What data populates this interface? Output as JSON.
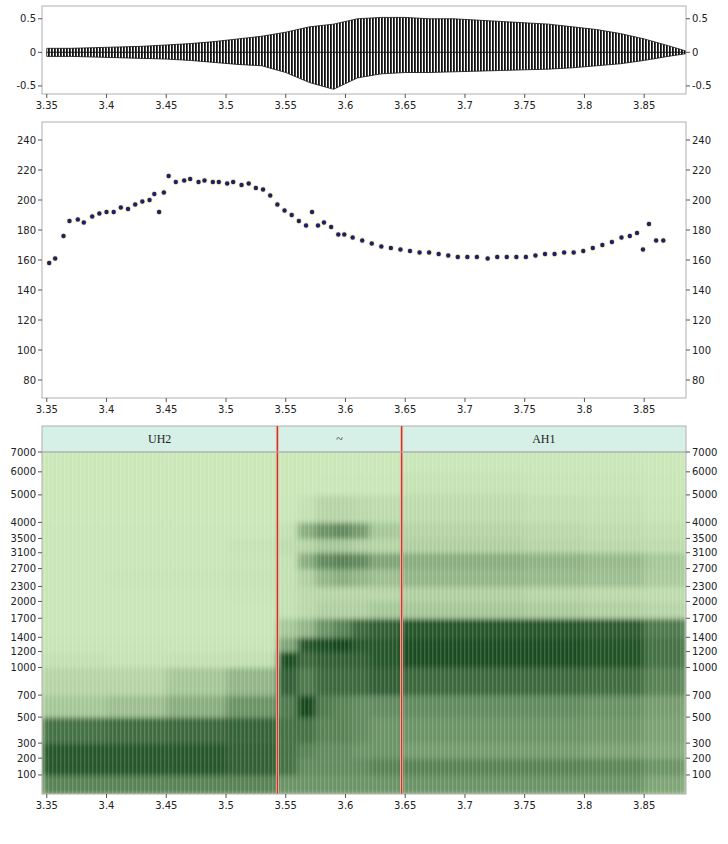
{
  "chart_data": [
    {
      "type": "waveform",
      "x": [
        3.35,
        3.37,
        3.39,
        3.41,
        3.43,
        3.45,
        3.47,
        3.49,
        3.51,
        3.53,
        3.55,
        3.57,
        3.59,
        3.61,
        3.63,
        3.65,
        3.67,
        3.69,
        3.71,
        3.73,
        3.75,
        3.77,
        3.79,
        3.81,
        3.83,
        3.85,
        3.87,
        3.885
      ],
      "upper": [
        0.06,
        0.06,
        0.07,
        0.08,
        0.09,
        0.11,
        0.13,
        0.16,
        0.2,
        0.24,
        0.3,
        0.38,
        0.42,
        0.5,
        0.52,
        0.52,
        0.5,
        0.5,
        0.48,
        0.46,
        0.44,
        0.42,
        0.38,
        0.34,
        0.28,
        0.2,
        0.1,
        0.02
      ],
      "lower": [
        -0.06,
        -0.06,
        -0.07,
        -0.08,
        -0.09,
        -0.1,
        -0.12,
        -0.15,
        -0.18,
        -0.2,
        -0.3,
        -0.45,
        -0.55,
        -0.38,
        -0.32,
        -0.3,
        -0.3,
        -0.29,
        -0.28,
        -0.27,
        -0.26,
        -0.25,
        -0.23,
        -0.2,
        -0.17,
        -0.12,
        -0.06,
        -0.02
      ],
      "color": "#111111",
      "xlim": [
        3.346,
        3.885
      ],
      "ylim": [
        -0.62,
        0.69
      ],
      "xticks": [
        3.35,
        3.4,
        3.45,
        3.5,
        3.55,
        3.6,
        3.65,
        3.7,
        3.75,
        3.8,
        3.85
      ],
      "yticks": [
        -0.5,
        0,
        0.5
      ]
    },
    {
      "type": "scatter",
      "x": [
        3.352,
        3.357,
        3.364,
        3.369,
        3.376,
        3.381,
        3.388,
        3.394,
        3.4,
        3.406,
        3.412,
        3.418,
        3.424,
        3.43,
        3.436,
        3.44,
        3.444,
        3.448,
        3.452,
        3.458,
        3.465,
        3.47,
        3.477,
        3.482,
        3.489,
        3.494,
        3.501,
        3.506,
        3.513,
        3.519,
        3.525,
        3.531,
        3.537,
        3.543,
        3.549,
        3.555,
        3.561,
        3.567,
        3.572,
        3.577,
        3.582,
        3.588,
        3.594,
        3.599,
        3.606,
        3.614,
        3.622,
        3.63,
        3.638,
        3.646,
        3.654,
        3.662,
        3.67,
        3.678,
        3.686,
        3.694,
        3.702,
        3.71,
        3.719,
        3.727,
        3.735,
        3.743,
        3.751,
        3.759,
        3.767,
        3.775,
        3.783,
        3.791,
        3.799,
        3.807,
        3.815,
        3.823,
        3.831,
        3.838,
        3.844,
        3.849,
        3.854,
        3.86,
        3.866
      ],
      "values": [
        158,
        161,
        176,
        186,
        187,
        185,
        189,
        191,
        192,
        192,
        195,
        194,
        197,
        199,
        200,
        204,
        192,
        205,
        216,
        212,
        213,
        214,
        212,
        213,
        212,
        212,
        211,
        212,
        210,
        211,
        208,
        207,
        203,
        197,
        193,
        190,
        186,
        183,
        192,
        183,
        185,
        182,
        177,
        177,
        175,
        173,
        171,
        169,
        168,
        167,
        166,
        165,
        165,
        164,
        163,
        162,
        162,
        162,
        161,
        162,
        162,
        162,
        162,
        163,
        164,
        164,
        165,
        165,
        166,
        168,
        170,
        172,
        175,
        176,
        178,
        167,
        184,
        173,
        173
      ],
      "color": "#1c1f6b",
      "marker": "circle",
      "xlim": [
        3.346,
        3.885
      ],
      "ylim": [
        68,
        252
      ],
      "xticks": [
        3.35,
        3.4,
        3.45,
        3.5,
        3.55,
        3.6,
        3.65,
        3.7,
        3.75,
        3.8,
        3.85
      ],
      "yticks": [
        80,
        100,
        120,
        140,
        160,
        180,
        200,
        220,
        240
      ]
    },
    {
      "type": "spectrogram",
      "time_edges": [
        3.346,
        3.4,
        3.45,
        3.5,
        3.543,
        3.56,
        3.575,
        3.59,
        3.605,
        3.62,
        3.647,
        3.7,
        3.75,
        3.8,
        3.85,
        3.885
      ],
      "freq_edges": [
        0,
        100,
        200,
        300,
        500,
        700,
        1000,
        1200,
        1400,
        1700,
        2000,
        2300,
        2700,
        3100,
        3500,
        4000,
        5000,
        6000,
        7000
      ],
      "cells": [
        [
          0.6,
          0.85,
          0.85,
          0.7,
          0.2,
          0.12,
          0.05,
          0.03,
          0.02,
          0.02,
          0.02,
          0.02,
          0.02,
          0.02,
          0.02,
          0.01,
          0.01,
          0.01
        ],
        [
          0.6,
          0.85,
          0.85,
          0.72,
          0.25,
          0.12,
          0.04,
          0.03,
          0.02,
          0.02,
          0.02,
          0.03,
          0.02,
          0.02,
          0.02,
          0.01,
          0.01,
          0.01
        ],
        [
          0.6,
          0.85,
          0.85,
          0.75,
          0.35,
          0.2,
          0.05,
          0.03,
          0.02,
          0.02,
          0.02,
          0.03,
          0.02,
          0.02,
          0.02,
          0.01,
          0.01,
          0.01
        ],
        [
          0.6,
          0.8,
          0.8,
          0.78,
          0.5,
          0.3,
          0.06,
          0.03,
          0.02,
          0.02,
          0.03,
          0.04,
          0.03,
          0.04,
          0.02,
          0.01,
          0.01,
          0.01
        ],
        [
          0.5,
          0.7,
          0.7,
          0.7,
          0.65,
          0.8,
          0.9,
          0.4,
          0.2,
          0.05,
          0.05,
          0.05,
          0.05,
          0.08,
          0.05,
          0.02,
          0.01,
          0.01
        ],
        [
          0.5,
          0.55,
          0.6,
          0.7,
          0.95,
          0.65,
          0.75,
          0.85,
          0.3,
          0.1,
          0.1,
          0.15,
          0.35,
          0.12,
          0.35,
          0.05,
          0.01,
          0.01
        ],
        [
          0.5,
          0.55,
          0.55,
          0.6,
          0.65,
          0.75,
          0.8,
          0.9,
          0.5,
          0.15,
          0.12,
          0.3,
          0.55,
          0.2,
          0.5,
          0.12,
          0.02,
          0.01
        ],
        [
          0.5,
          0.55,
          0.55,
          0.6,
          0.6,
          0.75,
          0.8,
          0.95,
          0.6,
          0.15,
          0.12,
          0.35,
          0.6,
          0.2,
          0.55,
          0.12,
          0.02,
          0.01
        ],
        [
          0.5,
          0.55,
          0.5,
          0.55,
          0.55,
          0.75,
          0.8,
          0.85,
          0.75,
          0.15,
          0.12,
          0.3,
          0.55,
          0.15,
          0.45,
          0.1,
          0.02,
          0.01
        ],
        [
          0.5,
          0.6,
          0.5,
          0.5,
          0.55,
          0.8,
          0.85,
          0.85,
          0.8,
          0.2,
          0.12,
          0.25,
          0.4,
          0.12,
          0.2,
          0.08,
          0.02,
          0.01
        ],
        [
          0.5,
          0.6,
          0.45,
          0.5,
          0.55,
          0.75,
          0.9,
          0.9,
          0.85,
          0.2,
          0.15,
          0.3,
          0.35,
          0.15,
          0.12,
          0.08,
          0.04,
          0.02
        ],
        [
          0.5,
          0.6,
          0.45,
          0.5,
          0.55,
          0.75,
          0.9,
          0.9,
          0.85,
          0.2,
          0.15,
          0.3,
          0.35,
          0.15,
          0.12,
          0.08,
          0.04,
          0.02
        ],
        [
          0.5,
          0.6,
          0.45,
          0.5,
          0.55,
          0.75,
          0.9,
          0.9,
          0.85,
          0.18,
          0.12,
          0.28,
          0.32,
          0.12,
          0.1,
          0.06,
          0.03,
          0.02
        ],
        [
          0.5,
          0.58,
          0.42,
          0.48,
          0.52,
          0.72,
          0.88,
          0.88,
          0.82,
          0.15,
          0.1,
          0.25,
          0.28,
          0.1,
          0.08,
          0.05,
          0.03,
          0.02
        ],
        [
          0.4,
          0.5,
          0.38,
          0.42,
          0.45,
          0.6,
          0.7,
          0.7,
          0.65,
          0.12,
          0.08,
          0.18,
          0.2,
          0.08,
          0.06,
          0.03,
          0.02,
          0.01
        ]
      ],
      "zlim": [
        0,
        1
      ],
      "color": "#0b3d12",
      "segments": [
        {
          "label": "UH2",
          "start": 3.346,
          "end": 3.543
        },
        {
          "label": "~",
          "start": 3.543,
          "end": 3.647
        },
        {
          "label": "AH1",
          "start": 3.647,
          "end": 3.885
        }
      ],
      "xlim": [
        3.346,
        3.885
      ],
      "ylim": [
        0,
        7000
      ],
      "xticks": [
        3.35,
        3.4,
        3.45,
        3.5,
        3.55,
        3.6,
        3.65,
        3.7,
        3.75,
        3.8,
        3.85
      ],
      "yticks": [
        100,
        200,
        300,
        500,
        700,
        1000,
        1200,
        1400,
        1700,
        2000,
        2300,
        2700,
        3100,
        3500,
        4000,
        5000,
        6000,
        7000
      ]
    }
  ]
}
